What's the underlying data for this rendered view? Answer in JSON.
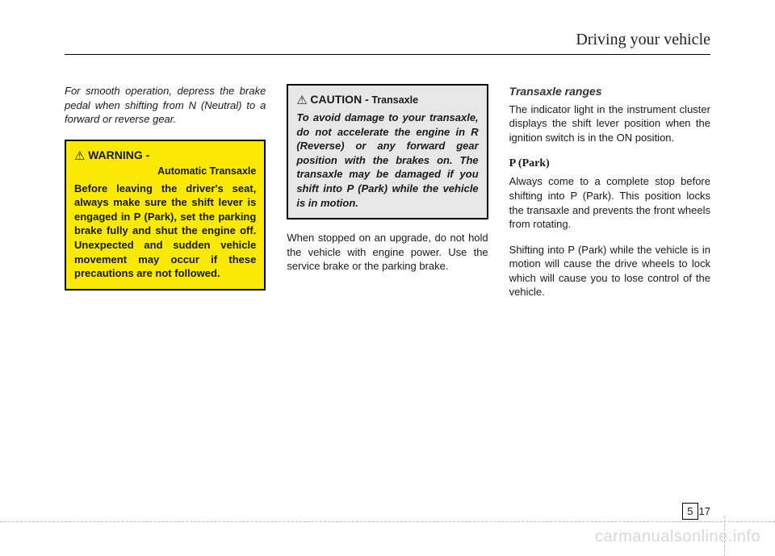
{
  "header": {
    "title": "Driving your vehicle"
  },
  "col1": {
    "intro": "For smooth operation, depress the brake pedal when shifting from N (Neutral) to a forward or reverse gear.",
    "warning": {
      "icon": "⚠",
      "title": "WARNING -",
      "sub": "Automatic Transaxle",
      "body": "Before leaving the driver's seat, always make sure the shift lever is engaged in P (Park), set the parking brake fully and shut the engine off. Unexpected and sudden vehicle movement may occur if these precautions are not followed."
    }
  },
  "col2": {
    "caution": {
      "icon": "⚠",
      "title": "CAUTION -",
      "sub": "Transaxle",
      "body": "To avoid damage to your transaxle, do not accelerate the engine in R (Reverse) or any forward gear position with the brakes on. The transaxle may be damaged if you shift into P (Park) while the vehicle is in motion."
    },
    "para": "When stopped on an upgrade, do not hold the vehicle with engine power. Use the service brake or the parking brake."
  },
  "col3": {
    "section_title": "Transaxle ranges",
    "para1": "The indicator light in the instrument cluster displays the shift lever position when the ignition switch is in the ON position.",
    "sub_title": "P (Park)",
    "para2": "Always come to a complete stop before shifting into P (Park). This position locks the transaxle and prevents the front wheels from rotating.",
    "para3": "Shifting into P (Park) while the vehicle is in motion will cause the drive wheels to lock which will cause you to lose control of the vehicle."
  },
  "footer": {
    "chapter": "5",
    "page": "17"
  },
  "watermark": "carmanualsonline.info"
}
